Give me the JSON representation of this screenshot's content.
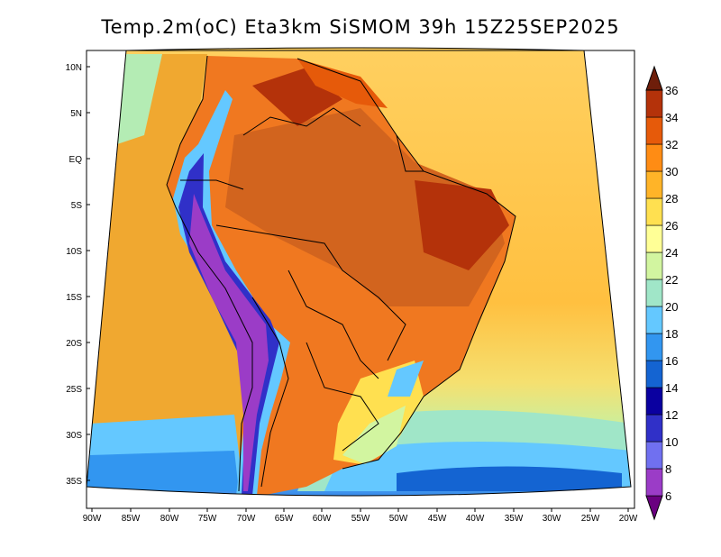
{
  "title": "Temp.2m(oC) Eta3km SiSMOM 39h 15Z25SEP2025",
  "map": {
    "lon_labels": [
      "90W",
      "85W",
      "80W",
      "75W",
      "70W",
      "65W",
      "60W",
      "55W",
      "50W",
      "45W",
      "40W",
      "35W",
      "30W",
      "25W",
      "20W"
    ],
    "lat_labels": [
      "10N",
      "5N",
      "EQ",
      "5S",
      "10S",
      "15S",
      "20S",
      "25S",
      "30S",
      "35S"
    ]
  },
  "colorbar": {
    "labels": [
      "6",
      "8",
      "10",
      "12",
      "14",
      "16",
      "18",
      "20",
      "22",
      "24",
      "26",
      "28",
      "30",
      "32",
      "34",
      "36"
    ],
    "colors": [
      "#6a0080",
      "#9b3cc7",
      "#7070f0",
      "#3030c8",
      "#0a00a0",
      "#1464d2",
      "#3296f0",
      "#64c8ff",
      "#a0e6c8",
      "#d2f5a0",
      "#ffff96",
      "#ffe050",
      "#ffb428",
      "#ff8c14",
      "#e65a0a",
      "#b4320a",
      "#6e1e0a"
    ]
  },
  "colors": {
    "ocean_warm": "#f5c850",
    "ocean_mid": "#f0a028",
    "land_hot": "#d2641e",
    "andes_cold": "#4040c0",
    "south_cool": "#64c8ff"
  }
}
